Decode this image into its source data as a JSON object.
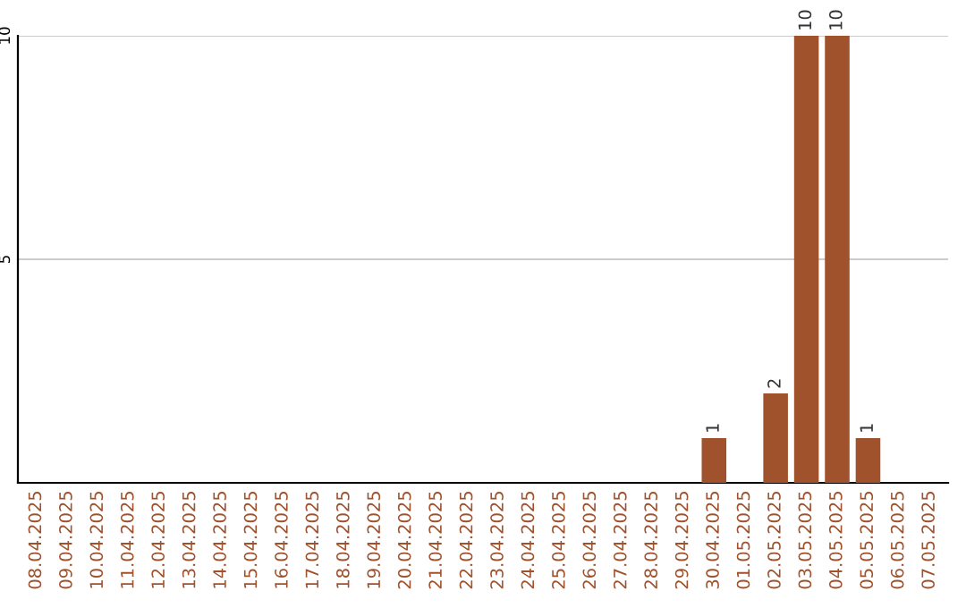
{
  "chart_data": {
    "type": "bar",
    "categories": [
      "08.04.2025",
      "09.04.2025",
      "10.04.2025",
      "11.04.2025",
      "12.04.2025",
      "13.04.2025",
      "14.04.2025",
      "15.04.2025",
      "16.04.2025",
      "17.04.2025",
      "18.04.2025",
      "19.04.2025",
      "20.04.2025",
      "21.04.2025",
      "22.04.2025",
      "23.04.2025",
      "24.04.2025",
      "25.04.2025",
      "26.04.2025",
      "27.04.2025",
      "28.04.2025",
      "29.04.2025",
      "30.04.2025",
      "01.05.2025",
      "02.05.2025",
      "03.05.2025",
      "04.05.2025",
      "05.05.2025",
      "06.05.2025",
      "07.05.2025"
    ],
    "values": [
      0,
      0,
      0,
      0,
      0,
      0,
      0,
      0,
      0,
      0,
      0,
      0,
      0,
      0,
      0,
      0,
      0,
      0,
      0,
      0,
      0,
      0,
      1,
      0,
      2,
      10,
      10,
      1,
      0,
      0
    ],
    "value_labels": [
      null,
      null,
      null,
      null,
      null,
      null,
      null,
      null,
      null,
      null,
      null,
      null,
      null,
      null,
      null,
      null,
      null,
      null,
      null,
      null,
      null,
      null,
      "1",
      null,
      "2",
      "10",
      "10",
      "1",
      null,
      null
    ],
    "color": "#a0522d",
    "ylim": [
      0,
      10
    ],
    "yticks": [
      5,
      10
    ],
    "grid": "y"
  }
}
